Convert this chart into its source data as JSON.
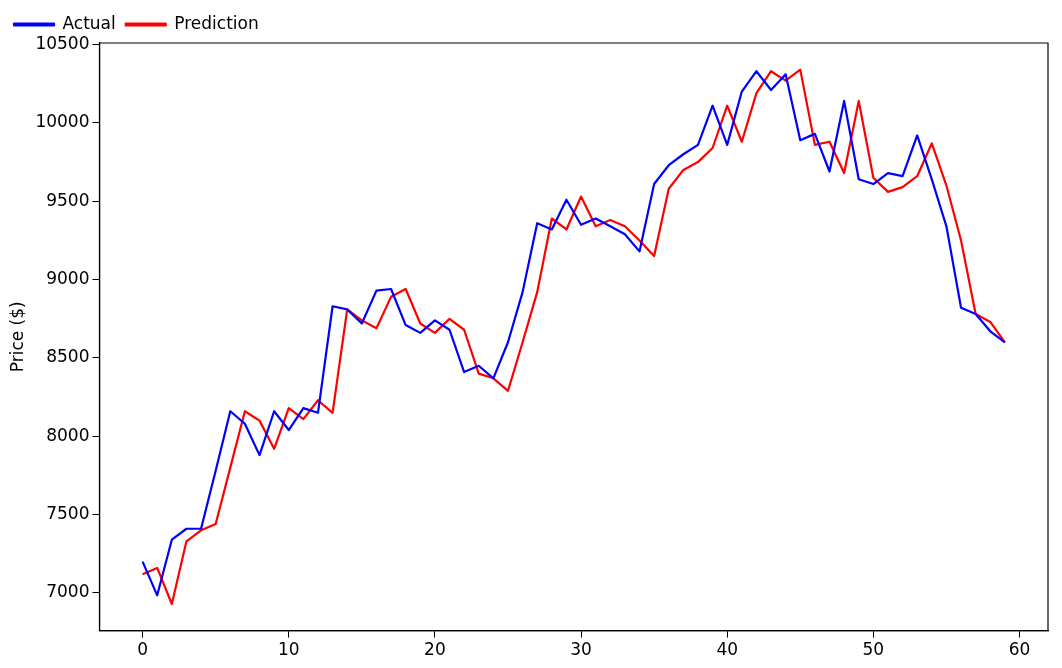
{
  "chart_data": {
    "type": "line",
    "ylabel": "Price ($)",
    "legend": "top left",
    "grid": false,
    "marker": "none",
    "line_style": "solid",
    "x": [
      0,
      1,
      2,
      3,
      4,
      5,
      6,
      7,
      8,
      9,
      10,
      11,
      12,
      13,
      14,
      15,
      16,
      17,
      18,
      19,
      20,
      21,
      22,
      23,
      24,
      25,
      26,
      27,
      28,
      29,
      30,
      31,
      32,
      33,
      34,
      35,
      36,
      37,
      38,
      39,
      40,
      41,
      42,
      43,
      44,
      45,
      46,
      47,
      48,
      49,
      50,
      51,
      52,
      53,
      54,
      55,
      56,
      57,
      58,
      59
    ],
    "xlim": [
      -2.95,
      61.95
    ],
    "xticks": [
      0,
      10,
      20,
      30,
      40,
      50,
      60
    ],
    "ylim": [
      6760,
      10510
    ],
    "yticks": [
      7000,
      7500,
      8000,
      8500,
      9000,
      9500,
      10000,
      10500
    ],
    "series": [
      {
        "name": "Actual",
        "color": "#0000ff",
        "values": [
          7200,
          6985,
          7340,
          7410,
          7410,
          7780,
          8160,
          8080,
          7880,
          8160,
          8040,
          8180,
          8150,
          8830,
          8810,
          8720,
          8930,
          8940,
          8710,
          8660,
          8740,
          8680,
          8410,
          8450,
          8370,
          8600,
          8920,
          9360,
          9320,
          9510,
          9350,
          9390,
          9340,
          9290,
          9180,
          9610,
          9730,
          9800,
          9860,
          10110,
          9860,
          10200,
          10330,
          10210,
          10310,
          9890,
          9930,
          9690,
          10140,
          9640,
          9610,
          9680,
          9660,
          9920,
          9640,
          9340,
          8820,
          8780,
          8670,
          8600
        ]
      },
      {
        "name": "Prediction",
        "color": "#ff0000",
        "values": [
          7120,
          7160,
          6930,
          7330,
          7400,
          7440,
          7800,
          8160,
          8100,
          7920,
          8180,
          8110,
          8230,
          8150,
          8810,
          8740,
          8690,
          8890,
          8940,
          8720,
          8660,
          8750,
          8680,
          8400,
          8370,
          8290,
          8600,
          8920,
          9390,
          9320,
          9530,
          9340,
          9380,
          9340,
          9250,
          9150,
          9580,
          9700,
          9750,
          9840,
          10110,
          9880,
          10190,
          10330,
          10270,
          10340,
          9860,
          9880,
          9680,
          10140,
          9650,
          9560,
          9590,
          9660,
          9870,
          9600,
          9250,
          8780,
          8730,
          8600
        ]
      }
    ]
  }
}
